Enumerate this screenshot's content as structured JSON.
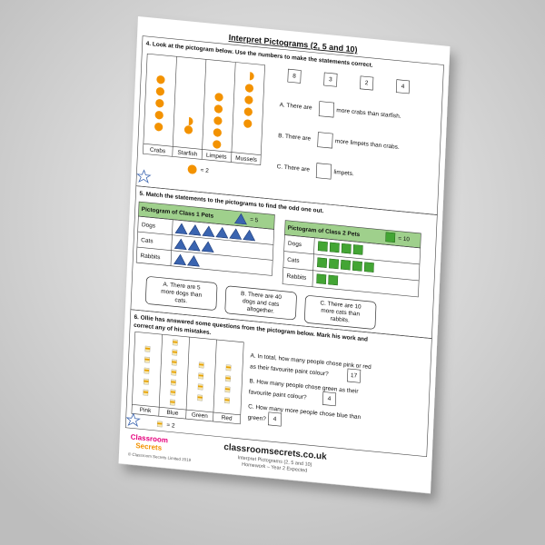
{
  "header": {
    "title": "Interpret Pictograms (2, 5 and 10)"
  },
  "q4": {
    "prompt": "4. Look at the pictogram below. Use the numbers to make the statements correct.",
    "labels": [
      "Crabs",
      "Starfish",
      "Limpets",
      "Mussels"
    ],
    "key": "= 2",
    "numbers": [
      "8",
      "3",
      "2",
      "4"
    ],
    "statements": [
      {
        "before": "A. There are",
        "after": "more crabs than starfish."
      },
      {
        "before": "B. There are",
        "after": "more limpets than crabs."
      },
      {
        "before": "C. There are",
        "after": "limpets."
      }
    ]
  },
  "q5": {
    "prompt": "5. Match the statements  to the pictograms to find the odd one out.",
    "table1": {
      "title": "Pictogram of Class  1 Pets",
      "key": "= 5",
      "rows": [
        "Dogs",
        "Cats",
        "Rabbits"
      ]
    },
    "table2": {
      "title": "Pictogram of Class  2 Pets",
      "key": "= 10",
      "rows": [
        "Dogs",
        "Cats",
        "Rabbits"
      ]
    },
    "statements": [
      [
        "A. There are 5",
        "more dogs than",
        "cats."
      ],
      [
        "B. There are 40",
        "dogs and cats",
        "altogether."
      ],
      [
        "C. There are 10",
        "more cats than",
        "rabbits."
      ]
    ]
  },
  "q6": {
    "prompt": [
      "6. Ollie has answered some questions from the pictogram below. Mark his work and",
      "correct any of his mistakes."
    ],
    "labels": [
      "Pink",
      "Blue",
      "Green",
      "Red"
    ],
    "key": "= 2",
    "questions": [
      {
        "lines": [
          "A. In total,  how many people chose pink or red",
          "as their favourite paint colour?"
        ],
        "answer": "17"
      },
      {
        "lines": [
          "B. How many people chose green as their",
          "favourite paint colour?"
        ],
        "answer": "4"
      },
      {
        "lines": [
          "C. How many more people chose blue than",
          "green?"
        ],
        "answer": "4"
      }
    ]
  },
  "footer": {
    "brand": [
      "Classroom",
      "Secrets"
    ],
    "url": "classroomsecrets.co.uk",
    "line1": "Interpret Pictograms (2, 5 and 10)",
    "line2": "Homework – Year 2 Expected",
    "copyright": "© Classroom Secrets Limited 2019"
  }
}
